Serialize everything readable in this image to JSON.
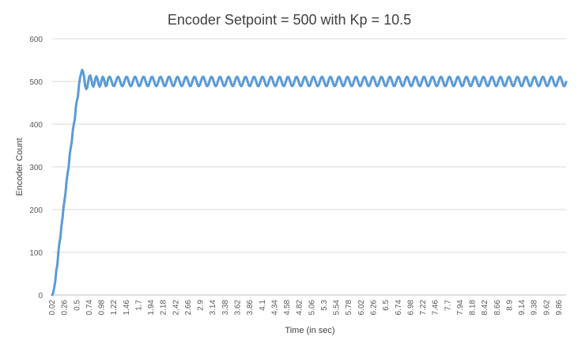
{
  "chart_data": {
    "type": "line",
    "title": "Encoder Setpoint = 500 with Kp = 10.5",
    "xlabel": "Time (in sec)",
    "ylabel": "Encoder Count",
    "ylim": [
      0,
      600
    ],
    "yticks": [
      0,
      100,
      200,
      300,
      400,
      500,
      600
    ],
    "grid": true,
    "legend": "none",
    "xlim": [
      0.02,
      10.0
    ],
    "x_tick_labels": [
      "0.02",
      "0.26",
      "0.5",
      "0.74",
      "0.98",
      "1.22",
      "1.46",
      "1.7",
      "1.94",
      "2.18",
      "2.42",
      "2.66",
      "2.9",
      "3.14",
      "3.38",
      "3.62",
      "3.86",
      "4.1",
      "4.34",
      "4.58",
      "4.82",
      "5.06",
      "5.3",
      "5.54",
      "5.78",
      "6.02",
      "6.26",
      "6.5",
      "6.74",
      "6.98",
      "7.22",
      "7.46",
      "7.7",
      "7.94",
      "8.18",
      "8.42",
      "8.66",
      "8.9",
      "9.14",
      "9.38",
      "9.62",
      "9.86"
    ],
    "series": [
      {
        "color": "#5b9bd5",
        "x": [
          0.02,
          0.04,
          0.06,
          0.08,
          0.1,
          0.12,
          0.14,
          0.16,
          0.18,
          0.2,
          0.22,
          0.24,
          0.26,
          0.28,
          0.3,
          0.32,
          0.34,
          0.36,
          0.38,
          0.4,
          0.42,
          0.44,
          0.46,
          0.48,
          0.5,
          0.52,
          0.54,
          0.56,
          0.58,
          0.6,
          0.62,
          0.64,
          0.66,
          0.68,
          0.7,
          0.72,
          0.74,
          0.76,
          0.78,
          0.8,
          0.82,
          0.84,
          0.86,
          0.88,
          0.9,
          0.92,
          0.94,
          0.96,
          0.98,
          1.0,
          1.02,
          1.04,
          1.06,
          1.08,
          1.1
        ],
        "y": [
          0,
          5,
          18,
          32,
          58,
          70,
          100,
          122,
          135,
          162,
          180,
          205,
          222,
          240,
          268,
          285,
          300,
          328,
          345,
          358,
          385,
          400,
          412,
          440,
          455,
          465,
          492,
          508,
          518,
          527,
          523,
          510,
          490,
          482,
          485,
          500,
          512,
          514,
          505,
          492,
          488,
          495,
          508,
          512,
          506,
          494,
          488,
          492,
          504,
          511,
          508,
          497,
          489,
          491,
          503
        ]
      }
    ],
    "steady_state_oscillation": {
      "x_start": 1.1,
      "x_end": 10.0,
      "center": 500,
      "amplitude": 11,
      "period": 0.165
    }
  }
}
